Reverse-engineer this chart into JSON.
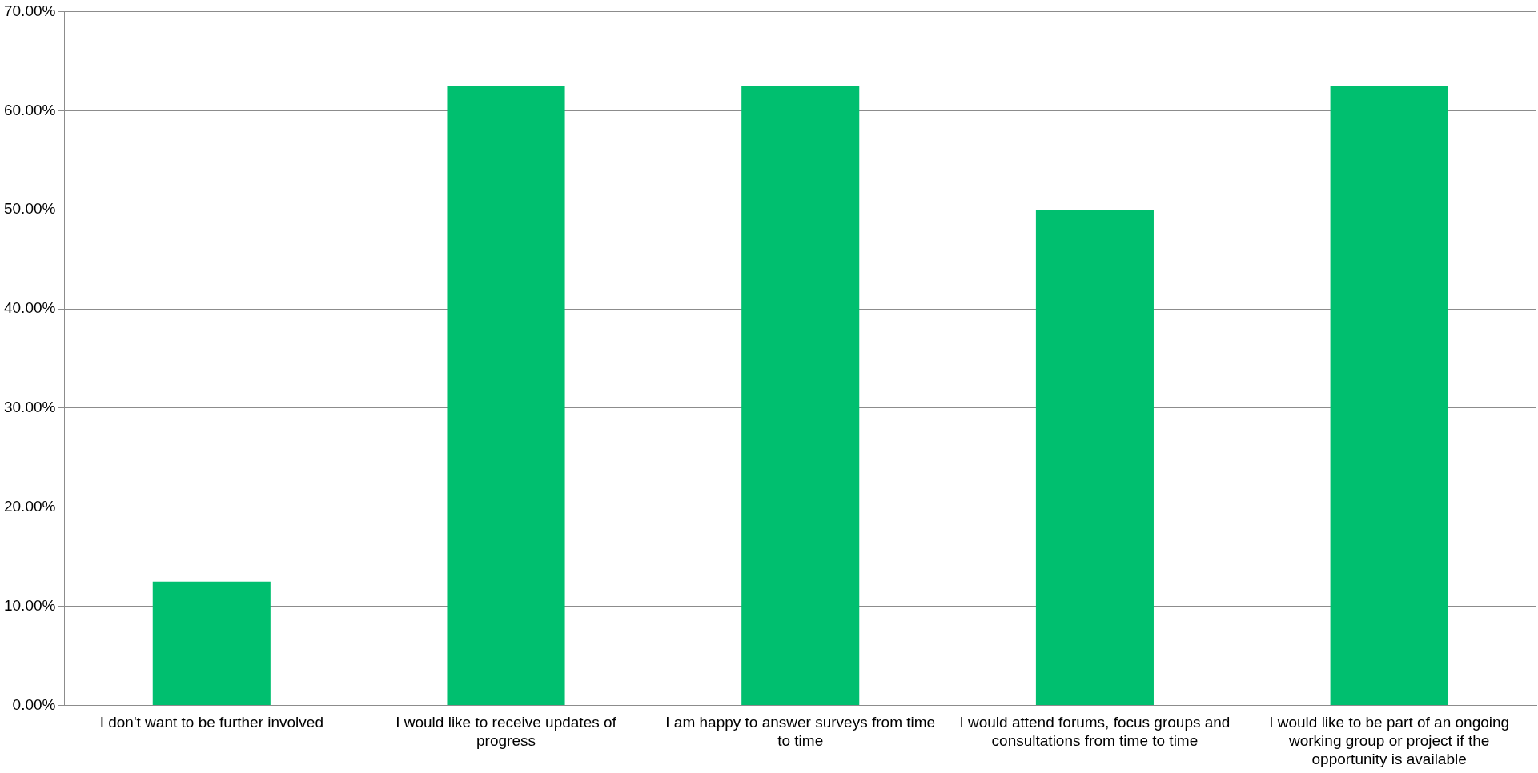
{
  "chart_data": {
    "type": "bar",
    "categories": [
      "I don't want to be further involved",
      "I would like to receive updates of progress",
      "I am happy to answer surveys from time to time",
      "I would attend forums, focus groups and consultations from time to time",
      "I would like to be part of an ongoing working group or project if the opportunity is available"
    ],
    "values": [
      12.5,
      62.5,
      62.5,
      50,
      62.5
    ],
    "color": "#00bf6f",
    "ylim": [
      0,
      70
    ],
    "yticks": [
      {
        "value": 0,
        "label": "0.00%"
      },
      {
        "value": 10,
        "label": "10.00%"
      },
      {
        "value": 20,
        "label": "20.00%"
      },
      {
        "value": 30,
        "label": "30.00%"
      },
      {
        "value": 40,
        "label": "40.00%"
      },
      {
        "value": 50,
        "label": "50.00%"
      },
      {
        "value": 60,
        "label": "60.00%"
      },
      {
        "value": 70,
        "label": "70.00%"
      }
    ],
    "grid": "y",
    "legend": false
  }
}
